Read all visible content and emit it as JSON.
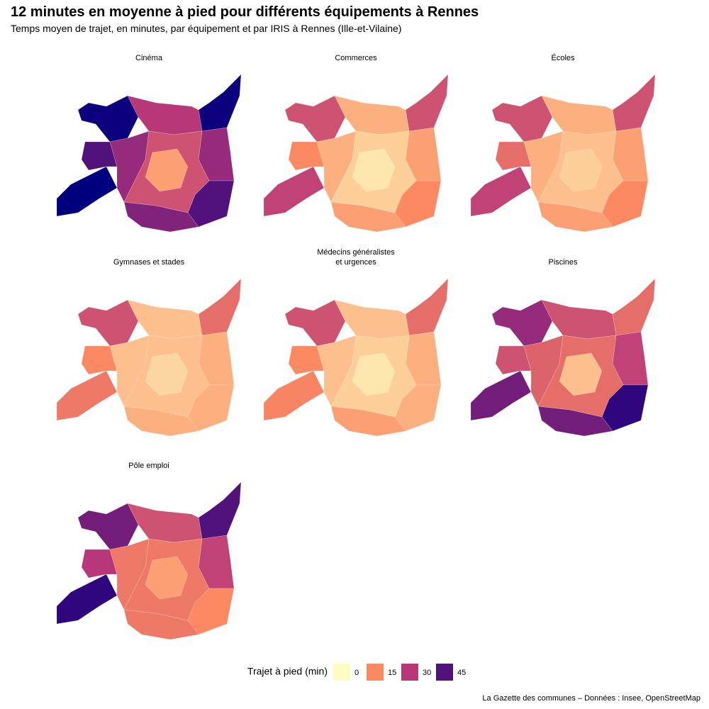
{
  "title": "12 minutes en moyenne à pied pour différents équipements à Rennes",
  "subtitle": "Temps moyen de trajet, en minutes, par équipement et par IRIS à Rennes (Ille-et-Vilaine)",
  "panels": [
    {
      "title": "Cinéma",
      "values": [
        55,
        55,
        60,
        45,
        30,
        35,
        45,
        38,
        35,
        25,
        12
      ]
    },
    {
      "title": "Commerces",
      "values": [
        25,
        25,
        28,
        15,
        10,
        12,
        15,
        12,
        10,
        6,
        3
      ]
    },
    {
      "title": "Écoles",
      "values": [
        25,
        25,
        28,
        20,
        10,
        12,
        15,
        12,
        10,
        8,
        6
      ]
    },
    {
      "title": "Gymnases et stades",
      "values": [
        25,
        20,
        18,
        15,
        8,
        10,
        10,
        10,
        8,
        8,
        5
      ]
    },
    {
      "title": "Médecins généralistes\net urgences",
      "values": [
        25,
        20,
        16,
        15,
        8,
        10,
        10,
        12,
        8,
        6,
        3
      ]
    },
    {
      "title": "Piscines",
      "values": [
        35,
        20,
        40,
        25,
        25,
        28,
        50,
        40,
        22,
        20,
        8
      ]
    },
    {
      "title": "Pôle emploi",
      "values": [
        40,
        45,
        50,
        30,
        25,
        28,
        15,
        18,
        18,
        18,
        12
      ]
    }
  ],
  "legend": {
    "title": "Trajet à pied (min)",
    "items": [
      {
        "value": 0,
        "color": "#fcfdbf"
      },
      {
        "value": 15,
        "color": "#fc8961"
      },
      {
        "value": 30,
        "color": "#b73779"
      },
      {
        "value": 45,
        "color": "#51127c"
      }
    ]
  },
  "caption": "La Gazette des communes – Données : Insee, OpenStreetMap"
}
